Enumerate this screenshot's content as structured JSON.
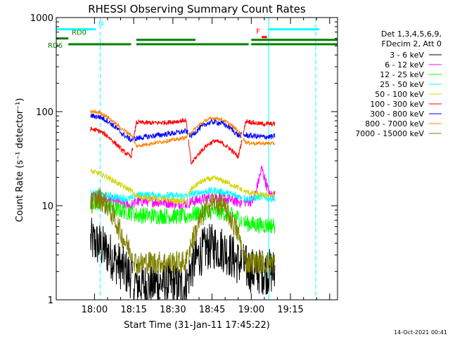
{
  "chart_data": {
    "type": "line",
    "title": "RHESSI Observing Summary Count Rates",
    "xlabel": "Start Time (31-Jan-11 17:45:22)",
    "ylabel": "Count Rate (s⁻¹ detector⁻¹)",
    "yscale": "log",
    "ylim": [
      1,
      1000
    ],
    "xlim": [
      "17:45:22",
      "19:33:00"
    ],
    "x_ticks": [
      "18:00",
      "18:15",
      "18:30",
      "18:45",
      "19:00",
      "19:15"
    ],
    "y_ticks": [
      "1",
      "10",
      "100",
      "1000"
    ],
    "legend_position": "top-right",
    "legend_header": [
      "Det 1,3,4,5,6,9,",
      "FDecim 2, Att 0"
    ],
    "footer_date": "14-Oct-2021 00:41",
    "data_segments": [
      {
        "start": "17:58:30",
        "end": "18:14:45"
      },
      {
        "start": "18:15:00",
        "end": "18:35:45"
      },
      {
        "start": "18:36:00",
        "end": "18:56:30"
      },
      {
        "start": "18:57:00",
        "end": "19:09:00"
      }
    ],
    "x": [
      "17:59",
      "18:02",
      "18:05",
      "18:08",
      "18:11",
      "18:14",
      "18:16",
      "18:20",
      "18:24",
      "18:28",
      "18:32",
      "18:35",
      "18:37",
      "18:40",
      "18:43",
      "18:46",
      "18:49",
      "18:52",
      "18:55",
      "18:58",
      "19:01",
      "19:04",
      "19:07"
    ],
    "series": [
      {
        "name": "3 - 6 keV",
        "color": "#000000",
        "values": [
          4.2,
          3.8,
          3.2,
          2.6,
          2.1,
          1.8,
          1.5,
          1.4,
          1.5,
          1.5,
          1.4,
          1.4,
          2.2,
          3.0,
          3.6,
          3.7,
          3.5,
          3.0,
          2.5,
          2.2,
          2.0,
          2.0,
          2.0
        ]
      },
      {
        "name": "6 - 12 keV",
        "color": "#ff00ff",
        "values": [
          12.5,
          12.3,
          11.8,
          11.0,
          10.5,
          10.0,
          11.0,
          11.2,
          11.0,
          10.8,
          10.6,
          10.5,
          11.0,
          11.5,
          12.0,
          12.3,
          12.0,
          11.5,
          11.0,
          11.0,
          11.5,
          25.0,
          13.0
        ]
      },
      {
        "name": "12 - 25 keV",
        "color": "#00ff00",
        "values": [
          11.0,
          10.5,
          9.8,
          9.2,
          8.8,
          8.5,
          8.0,
          7.9,
          7.8,
          7.8,
          7.7,
          7.6,
          8.0,
          8.3,
          8.6,
          8.7,
          8.5,
          8.0,
          7.5,
          6.5,
          6.3,
          6.2,
          6.2
        ]
      },
      {
        "name": "25 - 50 keV",
        "color": "#00ffff",
        "values": [
          13.5,
          13.2,
          12.8,
          12.4,
          12.0,
          11.8,
          13.0,
          13.0,
          12.9,
          12.8,
          12.7,
          12.6,
          13.2,
          13.8,
          14.2,
          14.5,
          14.0,
          13.3,
          12.6,
          12.0,
          12.0,
          12.5,
          12.0
        ]
      },
      {
        "name": "50 - 100 keV",
        "color": "#d4d400",
        "values": [
          23.0,
          22.0,
          20.0,
          18.0,
          16.0,
          14.5,
          12.5,
          12.2,
          11.8,
          11.5,
          11.2,
          11.0,
          15.0,
          17.5,
          19.0,
          19.5,
          18.5,
          17.0,
          15.5,
          14.0,
          13.5,
          13.0,
          13.0
        ]
      },
      {
        "name": "100 - 300 keV",
        "color": "#ff0000",
        "values": [
          65,
          62,
          55,
          46,
          38,
          33,
          77,
          76,
          76,
          77,
          79,
          81,
          28,
          36,
          44,
          49,
          46,
          40,
          33,
          80,
          76,
          74,
          74
        ]
      },
      {
        "name": "300 - 800 keV",
        "color": "#0000ff",
        "values": [
          90,
          88,
          80,
          68,
          57,
          50,
          52,
          54,
          56,
          58,
          60,
          62,
          55,
          66,
          75,
          78,
          75,
          67,
          56,
          56,
          55,
          54,
          54
        ]
      },
      {
        "name": "800 - 7000 keV",
        "color": "#ff8000",
        "values": [
          100,
          98,
          88,
          75,
          64,
          57,
          43,
          45,
          47,
          49,
          51,
          53,
          60,
          72,
          82,
          86,
          82,
          73,
          62,
          47,
          46,
          46,
          46
        ]
      },
      {
        "name": "7000 - 15000 keV",
        "color": "#808000",
        "values": [
          11.0,
          12.0,
          10.0,
          7.0,
          4.5,
          3.2,
          2.4,
          2.5,
          2.5,
          2.5,
          2.5,
          2.5,
          4.0,
          6.5,
          9.5,
          11.0,
          10.0,
          7.5,
          5.0,
          2.5,
          2.5,
          2.5,
          2.5
        ]
      }
    ],
    "annotations": [
      {
        "label": "N",
        "color": "#00ffff",
        "level": 750,
        "segments": [
          [
            "17:45:22",
            "18:00:30"
          ]
        ]
      },
      {
        "label": "",
        "color": "#00ffff",
        "level": 750,
        "segments": [
          [
            "19:06:40",
            "19:26:00"
          ]
        ]
      },
      {
        "label": "RD0",
        "color": "#008000",
        "level": 600,
        "segments": [
          [
            "17:45:22",
            "17:50:00"
          ]
        ]
      },
      {
        "label": "RD6",
        "color": "#008000",
        "level": 520,
        "segments": [
          [
            "17:50:00",
            "18:14:00"
          ],
          [
            "18:16:00",
            "18:38:40"
          ],
          [
            "18:38:40",
            "18:59:00"
          ],
          [
            "19:00:00",
            "19:33:00"
          ]
        ]
      },
      {
        "label": "",
        "color": "#008000",
        "level": 580,
        "segments": [
          [
            "18:16:00",
            "18:38:40"
          ],
          [
            "19:00:00",
            "19:33:00"
          ]
        ]
      },
      {
        "label": "F",
        "color": "#ff0000",
        "level": 620,
        "segments": [
          [
            "19:04:00",
            "19:06:00"
          ]
        ]
      }
    ],
    "vertical_markers": [
      {
        "color": "#00ffff",
        "style": "solid",
        "at": "17:45:22"
      },
      {
        "color": "#00ffff",
        "style": "dashed",
        "at": "18:02:10"
      },
      {
        "color": "#00ffff",
        "style": "solid",
        "at": "19:06:40"
      },
      {
        "color": "#00ffff",
        "style": "dashed",
        "at": "19:24:40"
      }
    ]
  }
}
